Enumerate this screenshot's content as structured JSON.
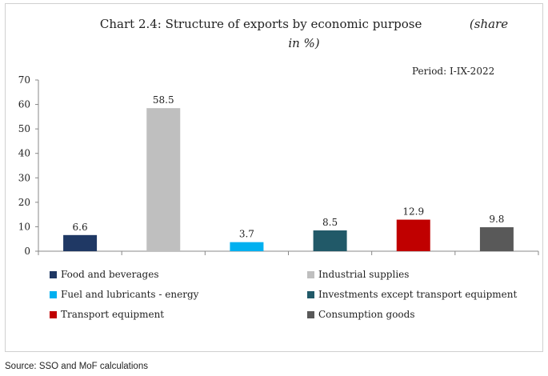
{
  "chart_data": {
    "type": "bar",
    "title": "Chart 2.4: Structure of exports by economic purpose",
    "unit_label_part1": "(share",
    "unit_label_part2": "in %)",
    "period_label": "Period:  I-IX-2022",
    "categories": [
      "Food and beverages",
      "Industrial supplies",
      "Fuel and lubricants - energy",
      "Investments except transport equipment",
      "Transport equipment",
      "Consumption goods"
    ],
    "values": [
      6.6,
      58.5,
      3.7,
      8.5,
      12.9,
      9.8
    ],
    "data_labels": [
      "6.6",
      "58.5",
      "3.7",
      "8.5",
      "12.9",
      "9.8"
    ],
    "colors": [
      "#1f3864",
      "#bfbfbf",
      "#00b0f0",
      "#215968",
      "#c00000",
      "#595959"
    ],
    "ylim": [
      0,
      70
    ],
    "yticks": [
      0,
      10,
      20,
      30,
      40,
      50,
      60,
      70
    ],
    "ytick_labels": [
      "0",
      "10",
      "20",
      "30",
      "40",
      "50",
      "60",
      "70"
    ],
    "grid": false,
    "legend_position": "bottom"
  },
  "source_text": "Source: SSO and MoF calculations"
}
